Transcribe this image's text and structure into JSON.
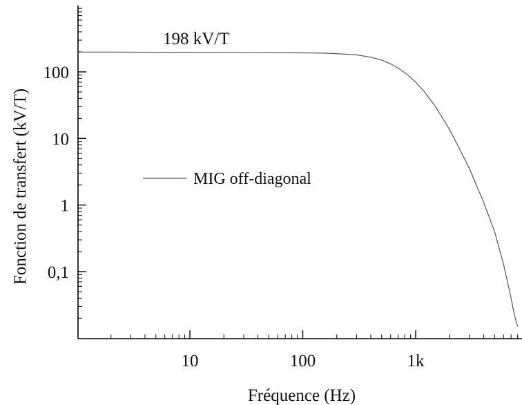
{
  "chart_data": {
    "type": "line",
    "title": "",
    "xlabel": "Fréquence (Hz)",
    "ylabel": "Fonction de transfert (kV/T)",
    "x_scale": "log",
    "y_scale": "log",
    "xlim": [
      1,
      8000
    ],
    "ylim": [
      0.012,
      1000
    ],
    "x_ticks": [
      {
        "value": 10,
        "label": "10"
      },
      {
        "value": 100,
        "label": "100"
      },
      {
        "value": 1000,
        "label": "1k"
      }
    ],
    "y_ticks": [
      {
        "value": 0.1,
        "label": "0,1"
      },
      {
        "value": 1,
        "label": "1"
      },
      {
        "value": 10,
        "label": "10"
      },
      {
        "value": 100,
        "label": "100"
      }
    ],
    "grid": false,
    "legend_position": "middle-left",
    "annotation": {
      "text": "198 kV/T",
      "x": 5,
      "y": 198
    },
    "series": [
      {
        "name": "MIG off-diagonal",
        "color": "#555555",
        "x": [
          1,
          2,
          5,
          10,
          20,
          50,
          100,
          150,
          200,
          300,
          400,
          500,
          600,
          700,
          800,
          900,
          1000,
          1200,
          1500,
          2000,
          2500,
          3000,
          4000,
          5000,
          6000,
          7000,
          7500,
          8000
        ],
        "y": [
          198,
          198,
          197,
          197,
          196,
          195,
          193,
          191,
          188,
          180,
          166,
          150,
          132,
          114,
          97,
          83,
          70,
          50,
          30,
          13.5,
          6.5,
          3.5,
          1.1,
          0.4,
          0.13,
          0.04,
          0.022,
          0.015
        ]
      }
    ]
  }
}
